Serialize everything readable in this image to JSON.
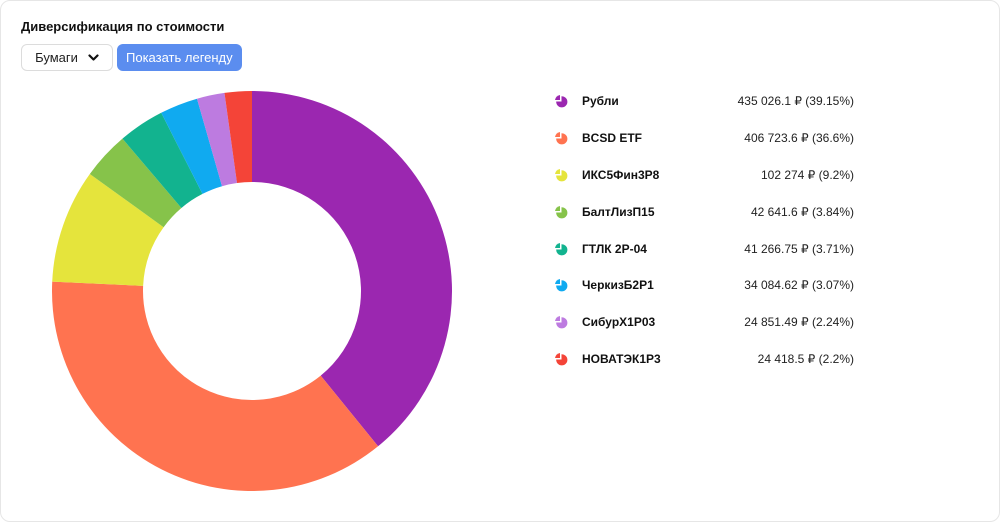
{
  "header": {
    "title": "Диверсификация по стоимости"
  },
  "controls": {
    "select_value": "Бумаги",
    "show_legend_label": "Показать легенду"
  },
  "chart_data": {
    "type": "pie",
    "variant": "donut",
    "title": "Диверсификация по стоимости",
    "legend_position": "right",
    "categories": [
      "Рубли",
      "BCSD ETF",
      "ИКС5Фин3Р8",
      "БалтЛизП15",
      "ГТЛК 2Р-04",
      "ЧеркизБ2Р1",
      "СибурХ1Р03",
      "НОВАТЭК1Р3"
    ],
    "values": [
      435026.1,
      406723.6,
      102274,
      42641.6,
      41266.75,
      34084.62,
      24851.49,
      24418.5
    ],
    "percents": [
      39.15,
      36.6,
      9.2,
      3.84,
      3.71,
      3.07,
      2.24,
      2.2
    ],
    "colors": [
      "#9b27b0",
      "#ff7350",
      "#e5e43c",
      "#86c34a",
      "#12b38f",
      "#10aaf0",
      "#bd7be0",
      "#f44438"
    ]
  },
  "legend": {
    "items": [
      {
        "name": "Рубли",
        "value": "435 026.1 ₽ (39.15%)",
        "color": "#9b27b0"
      },
      {
        "name": "BCSD ETF",
        "value": "406 723.6 ₽ (36.6%)",
        "color": "#ff7350"
      },
      {
        "name": "ИКС5Фин3Р8",
        "value": "102 274 ₽ (9.2%)",
        "color": "#e5e43c"
      },
      {
        "name": "БалтЛизП15",
        "value": "42 641.6 ₽ (3.84%)",
        "color": "#86c34a"
      },
      {
        "name": "ГТЛК 2Р-04",
        "value": "41 266.75 ₽ (3.71%)",
        "color": "#12b38f"
      },
      {
        "name": "ЧеркизБ2Р1",
        "value": "34 084.62 ₽ (3.07%)",
        "color": "#10aaf0"
      },
      {
        "name": "СибурХ1Р03",
        "value": "24 851.49 ₽ (2.24%)",
        "color": "#bd7be0"
      },
      {
        "name": "НОВАТЭК1Р3",
        "value": "24 418.5 ₽ (2.2%)",
        "color": "#f44438"
      }
    ]
  }
}
